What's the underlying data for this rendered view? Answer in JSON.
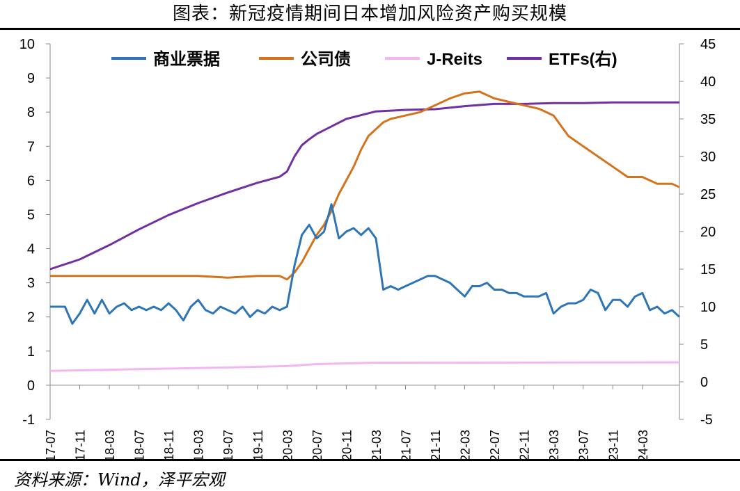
{
  "title": "图表：新冠疫情期间日本增加风险资产购买规模",
  "source": "资料来源：Wind，泽平宏观",
  "chart_data": {
    "type": "line",
    "title": "图表：新冠疫情期间日本增加风险资产购买规模",
    "x_ticks": [
      "2017-07",
      "2017-11",
      "2018-03",
      "2018-07",
      "2018-11",
      "2019-03",
      "2019-07",
      "2019-11",
      "2020-03",
      "2020-07",
      "2020-11",
      "2021-03",
      "2021-07",
      "2021-11",
      "2022-03",
      "2022-07",
      "2022-11",
      "2023-03",
      "2023-07",
      "2023-11",
      "2024-03"
    ],
    "x_range": [
      "2017-07",
      "2024-08"
    ],
    "y_left": {
      "ticks": [
        -1,
        0,
        1,
        2,
        3,
        4,
        5,
        6,
        7,
        8,
        9,
        10
      ],
      "range": [
        -1,
        10
      ]
    },
    "y_right": {
      "ticks": [
        -5,
        0,
        5,
        10,
        15,
        20,
        25,
        30,
        35,
        40,
        45
      ],
      "range": [
        -5,
        45
      ]
    },
    "legend_position": "top",
    "grid": false,
    "series": [
      {
        "name": "商业票据",
        "color": "#2e75b6",
        "axis": "left",
        "points": [
          [
            "2017-07",
            2.3
          ],
          [
            "2017-09",
            2.3
          ],
          [
            "2017-10",
            1.8
          ],
          [
            "2017-11",
            2.1
          ],
          [
            "2017-12",
            2.5
          ],
          [
            "2018-01",
            2.1
          ],
          [
            "2018-02",
            2.5
          ],
          [
            "2018-03",
            2.1
          ],
          [
            "2018-04",
            2.3
          ],
          [
            "2018-05",
            2.4
          ],
          [
            "2018-06",
            2.2
          ],
          [
            "2018-07",
            2.3
          ],
          [
            "2018-08",
            2.2
          ],
          [
            "2018-09",
            2.3
          ],
          [
            "2018-10",
            2.2
          ],
          [
            "2018-11",
            2.4
          ],
          [
            "2018-12",
            2.2
          ],
          [
            "2019-01",
            1.9
          ],
          [
            "2019-02",
            2.3
          ],
          [
            "2019-03",
            2.5
          ],
          [
            "2019-04",
            2.2
          ],
          [
            "2019-05",
            2.1
          ],
          [
            "2019-06",
            2.3
          ],
          [
            "2019-07",
            2.2
          ],
          [
            "2019-08",
            2.1
          ],
          [
            "2019-09",
            2.3
          ],
          [
            "2019-10",
            2.0
          ],
          [
            "2019-11",
            2.2
          ],
          [
            "2019-12",
            2.1
          ],
          [
            "2020-01",
            2.3
          ],
          [
            "2020-02",
            2.2
          ],
          [
            "2020-03",
            2.3
          ],
          [
            "2020-04",
            3.5
          ],
          [
            "2020-05",
            4.4
          ],
          [
            "2020-06",
            4.7
          ],
          [
            "2020-07",
            4.3
          ],
          [
            "2020-08",
            4.5
          ],
          [
            "2020-09",
            5.3
          ],
          [
            "2020-10",
            4.3
          ],
          [
            "2020-11",
            4.5
          ],
          [
            "2020-12",
            4.6
          ],
          [
            "2021-01",
            4.4
          ],
          [
            "2021-02",
            4.6
          ],
          [
            "2021-03",
            4.3
          ],
          [
            "2021-04",
            2.8
          ],
          [
            "2021-05",
            2.9
          ],
          [
            "2021-06",
            2.8
          ],
          [
            "2021-07",
            2.9
          ],
          [
            "2021-08",
            3.0
          ],
          [
            "2021-09",
            3.1
          ],
          [
            "2021-10",
            3.2
          ],
          [
            "2021-11",
            3.2
          ],
          [
            "2021-12",
            3.1
          ],
          [
            "2022-01",
            3.0
          ],
          [
            "2022-02",
            2.8
          ],
          [
            "2022-03",
            2.6
          ],
          [
            "2022-04",
            2.9
          ],
          [
            "2022-05",
            2.9
          ],
          [
            "2022-06",
            3.0
          ],
          [
            "2022-07",
            2.8
          ],
          [
            "2022-08",
            2.8
          ],
          [
            "2022-09",
            2.7
          ],
          [
            "2022-10",
            2.7
          ],
          [
            "2022-11",
            2.6
          ],
          [
            "2022-12",
            2.6
          ],
          [
            "2023-01",
            2.6
          ],
          [
            "2023-02",
            2.7
          ],
          [
            "2023-03",
            2.1
          ],
          [
            "2023-04",
            2.3
          ],
          [
            "2023-05",
            2.4
          ],
          [
            "2023-06",
            2.4
          ],
          [
            "2023-07",
            2.5
          ],
          [
            "2023-08",
            2.8
          ],
          [
            "2023-09",
            2.7
          ],
          [
            "2023-10",
            2.2
          ],
          [
            "2023-11",
            2.5
          ],
          [
            "2023-12",
            2.5
          ],
          [
            "2024-01",
            2.3
          ],
          [
            "2024-02",
            2.6
          ],
          [
            "2024-03",
            2.7
          ],
          [
            "2024-04",
            2.2
          ],
          [
            "2024-05",
            2.3
          ],
          [
            "2024-06",
            2.1
          ],
          [
            "2024-07",
            2.2
          ],
          [
            "2024-08",
            2.0
          ]
        ]
      },
      {
        "name": "公司债",
        "color": "#d4731c",
        "axis": "left",
        "points": [
          [
            "2017-07",
            3.2
          ],
          [
            "2017-11",
            3.2
          ],
          [
            "2018-01",
            3.2
          ],
          [
            "2018-03",
            3.2
          ],
          [
            "2018-07",
            3.2
          ],
          [
            "2018-11",
            3.2
          ],
          [
            "2019-03",
            3.2
          ],
          [
            "2019-07",
            3.15
          ],
          [
            "2019-11",
            3.2
          ],
          [
            "2020-02",
            3.2
          ],
          [
            "2020-03",
            3.1
          ],
          [
            "2020-04",
            3.3
          ],
          [
            "2020-05",
            3.6
          ],
          [
            "2020-06",
            4.0
          ],
          [
            "2020-07",
            4.4
          ],
          [
            "2020-08",
            4.7
          ],
          [
            "2020-09",
            5.1
          ],
          [
            "2020-10",
            5.6
          ],
          [
            "2020-11",
            6.0
          ],
          [
            "2020-12",
            6.4
          ],
          [
            "2021-01",
            6.9
          ],
          [
            "2021-02",
            7.3
          ],
          [
            "2021-03",
            7.5
          ],
          [
            "2021-04",
            7.7
          ],
          [
            "2021-05",
            7.8
          ],
          [
            "2021-07",
            7.9
          ],
          [
            "2021-09",
            8.0
          ],
          [
            "2021-11",
            8.2
          ],
          [
            "2022-01",
            8.4
          ],
          [
            "2022-03",
            8.55
          ],
          [
            "2022-05",
            8.6
          ],
          [
            "2022-07",
            8.4
          ],
          [
            "2022-09",
            8.3
          ],
          [
            "2022-11",
            8.2
          ],
          [
            "2023-01",
            8.1
          ],
          [
            "2023-03",
            7.9
          ],
          [
            "2023-05",
            7.3
          ],
          [
            "2023-07",
            7.0
          ],
          [
            "2023-09",
            6.7
          ],
          [
            "2023-11",
            6.4
          ],
          [
            "2024-01",
            6.1
          ],
          [
            "2024-03",
            6.1
          ],
          [
            "2024-05",
            5.9
          ],
          [
            "2024-07",
            5.9
          ],
          [
            "2024-08",
            5.8
          ]
        ]
      },
      {
        "name": "J-Reits",
        "color": "#f2b6f2",
        "axis": "left",
        "points": [
          [
            "2017-07",
            0.42
          ],
          [
            "2018-07",
            0.47
          ],
          [
            "2019-07",
            0.52
          ],
          [
            "2020-03",
            0.56
          ],
          [
            "2020-07",
            0.62
          ],
          [
            "2021-03",
            0.66
          ],
          [
            "2024-08",
            0.67
          ]
        ]
      },
      {
        "name": "ETFs(右)",
        "color": "#7030a0",
        "axis": "right",
        "points": [
          [
            "2017-07",
            15.0
          ],
          [
            "2017-11",
            16.3
          ],
          [
            "2018-03",
            18.2
          ],
          [
            "2018-07",
            20.3
          ],
          [
            "2018-11",
            22.2
          ],
          [
            "2019-03",
            23.8
          ],
          [
            "2019-07",
            25.2
          ],
          [
            "2019-11",
            26.5
          ],
          [
            "2020-02",
            27.3
          ],
          [
            "2020-03",
            28.0
          ],
          [
            "2020-04",
            30.0
          ],
          [
            "2020-05",
            31.5
          ],
          [
            "2020-06",
            32.3
          ],
          [
            "2020-07",
            33.0
          ],
          [
            "2020-09",
            34.0
          ],
          [
            "2020-11",
            35.0
          ],
          [
            "2021-01",
            35.5
          ],
          [
            "2021-03",
            36.0
          ],
          [
            "2021-07",
            36.2
          ],
          [
            "2021-11",
            36.3
          ],
          [
            "2022-03",
            36.7
          ],
          [
            "2022-07",
            37.0
          ],
          [
            "2022-11",
            37.0
          ],
          [
            "2023-03",
            37.1
          ],
          [
            "2023-07",
            37.1
          ],
          [
            "2023-11",
            37.2
          ],
          [
            "2024-03",
            37.2
          ],
          [
            "2024-08",
            37.2
          ]
        ]
      }
    ]
  }
}
